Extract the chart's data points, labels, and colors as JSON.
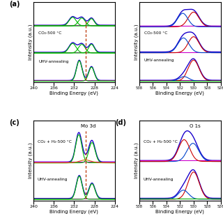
{
  "panels": {
    "a": {
      "label": "(a)",
      "inset_label": "",
      "xlabel": "Binding Energy (eV)",
      "ylabel": "Intensity (a.u.)",
      "xlim": [
        240,
        224
      ],
      "xticks": [
        240,
        236,
        232,
        228,
        224
      ],
      "condition1": "CO₂-500 °C",
      "condition2": "UHV-annealing",
      "dashed_line_x": 229.8
    },
    "b": {
      "label": "",
      "inset_label": "",
      "xlabel": "Binding Energy (eV)",
      "ylabel": "Intensity (a.u.)",
      "xlim": [
        538,
        526
      ],
      "xticks": [
        538,
        536,
        534,
        532,
        530,
        528,
        526
      ],
      "condition1": "CO₂-500 °C",
      "condition2": "UHV-annealing"
    },
    "c": {
      "label": "(c)",
      "inset_label": "Mo 3d",
      "xlabel": "Binding Energy (eV)",
      "ylabel": "Intensity (a.u.)",
      "xlim": [
        240,
        224
      ],
      "xticks": [
        240,
        236,
        232,
        228,
        224
      ],
      "condition1": "CO₂ + H₂-500 °C",
      "condition2": "UHV-annealing",
      "dashed_line_x": 229.8
    },
    "d": {
      "label": "(d)",
      "inset_label": "O 1s",
      "xlabel": "Binding Energy (eV)",
      "ylabel": "Intensity (a.u.)",
      "xlim": [
        538,
        526
      ],
      "xticks": [
        538,
        536,
        534,
        532,
        530,
        528,
        526
      ],
      "condition1": "CO₂ + H₂-500 °C",
      "condition2": "UHV-annealing"
    }
  },
  "colors": {
    "envelope": "#1a00cc",
    "background": "#cc00cc",
    "green": "#00bb00",
    "red": "#cc0000",
    "blue": "#0044cc",
    "orange": "#cc6600",
    "dashed": "#bb3300"
  }
}
